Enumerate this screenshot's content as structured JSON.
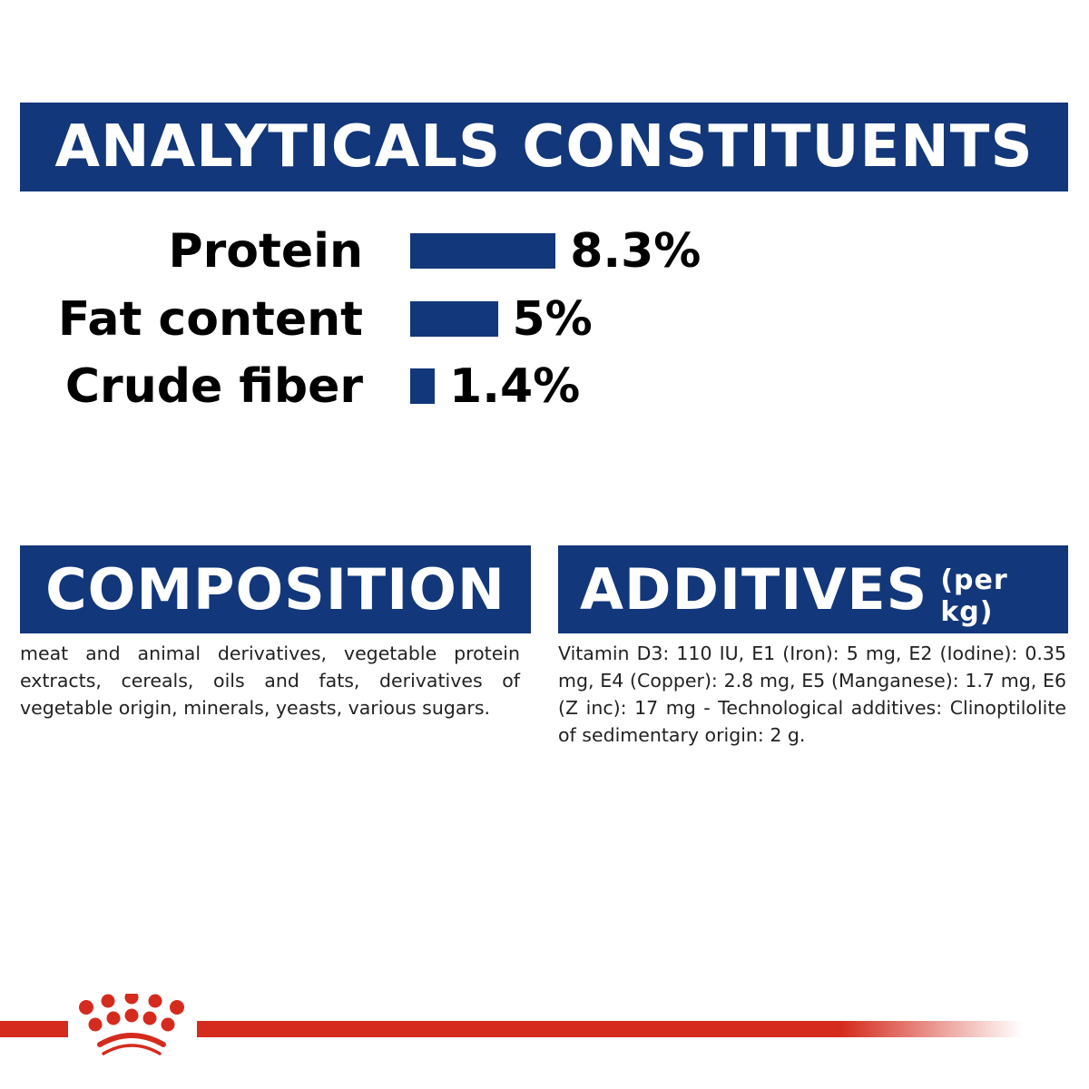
{
  "analytical": {
    "title": "ANALYTICALS CONSTITUENTS",
    "items": [
      {
        "label": "Protein",
        "value": 8.3,
        "display": "8.3%"
      },
      {
        "label": "Fat content",
        "value": 5,
        "display": "5%"
      },
      {
        "label": "Crude fiber",
        "value": 1.4,
        "display": "1.4%"
      }
    ]
  },
  "chart_data": {
    "type": "bar",
    "orientation": "horizontal",
    "categories": [
      "Protein",
      "Fat content",
      "Crude fiber"
    ],
    "values": [
      8.3,
      5,
      1.4
    ],
    "data_labels": [
      "8.3%",
      "5%",
      "1.4%"
    ],
    "title": "ANALYTICALS CONSTITUENTS",
    "color": "#12377a",
    "grid": false
  },
  "composition": {
    "title": "COMPOSITION",
    "text": "meat and animal derivatives, vegetable protein extracts, cereals, oils and fats, derivatives of vegetable origin, minerals, yeasts, various sugars."
  },
  "additives": {
    "title": "ADDITIVES",
    "subtitle": "(per kg)",
    "text": "Vitamin D3: 110 IU, E1 (Iron): 5 mg, E2 (Iodine): 0.35 mg, E4 (Copper): 2.8 mg, E5 (Manganese): 1.7 mg, E6 (Z inc): 17 mg - Technological additives: Clinoptilolite of sedimentary origin: 2 g."
  },
  "colors": {
    "brand_blue": "#12377a",
    "brand_red": "#d52b1e"
  },
  "logo": {
    "icon": "royal-canin-crown-icon"
  }
}
